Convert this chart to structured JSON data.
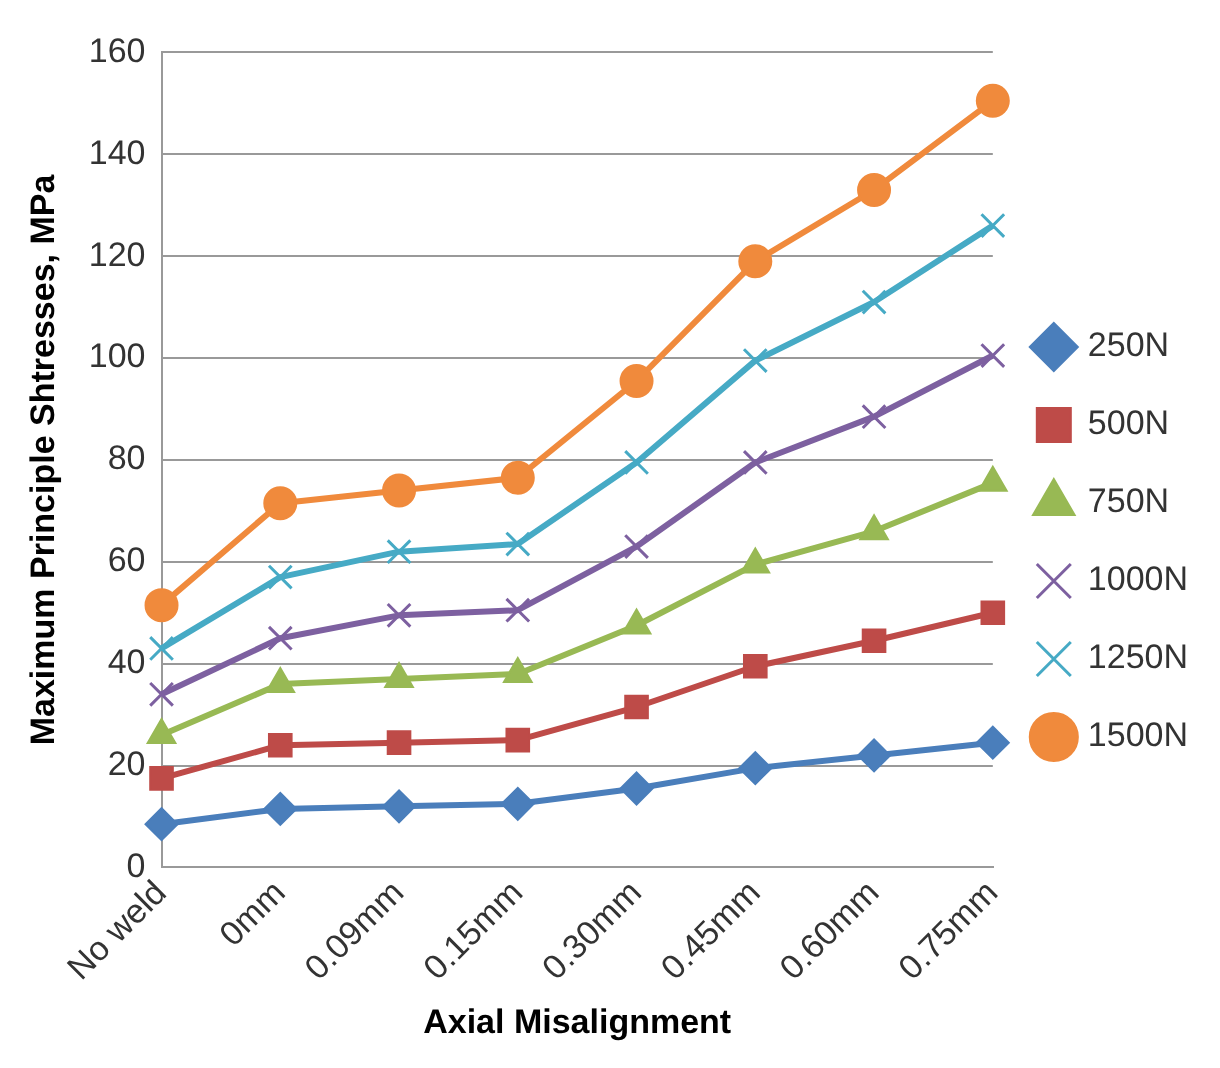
{
  "chart_data": {
    "type": "line",
    "xlabel": "Axial Misalignment",
    "ylabel": "Maximum Principle Shtresses, MPa",
    "categories": [
      "No weld",
      "0mm",
      "0.09mm",
      "0.15mm",
      "0.30mm",
      "0.45mm",
      "0.60mm",
      "0.75mm"
    ],
    "ylim": [
      0,
      160
    ],
    "yticks": [
      0,
      20,
      40,
      60,
      80,
      100,
      120,
      140,
      160
    ],
    "grid": "y",
    "legend": "right",
    "series": [
      {
        "name": "250N",
        "color": "#4a7ebb",
        "marker": "diamond",
        "values": [
          8.5,
          11.5,
          12,
          12.5,
          15.5,
          19.5,
          22,
          24.5
        ]
      },
      {
        "name": "500N",
        "color": "#be4b48",
        "marker": "square",
        "values": [
          17.5,
          24,
          24.5,
          25,
          31.5,
          39.5,
          44.5,
          50
        ]
      },
      {
        "name": "750N",
        "color": "#98b954",
        "marker": "triangle",
        "values": [
          26,
          36,
          37,
          38,
          47.5,
          59.5,
          66,
          75.5
        ]
      },
      {
        "name": "1000N",
        "color": "#7d60a0",
        "marker": "cross",
        "values": [
          34,
          45,
          49.5,
          50.5,
          63,
          79.5,
          88.5,
          100.5
        ]
      },
      {
        "name": "1250N",
        "color": "#46aac5",
        "marker": "cross",
        "values": [
          43,
          57,
          62,
          63.5,
          79.5,
          99.5,
          111,
          126
        ]
      },
      {
        "name": "1500N",
        "color": "#f08a3c",
        "marker": "circle",
        "values": [
          51.5,
          71.5,
          74,
          76.5,
          95.5,
          119,
          133,
          150.5
        ]
      }
    ]
  }
}
